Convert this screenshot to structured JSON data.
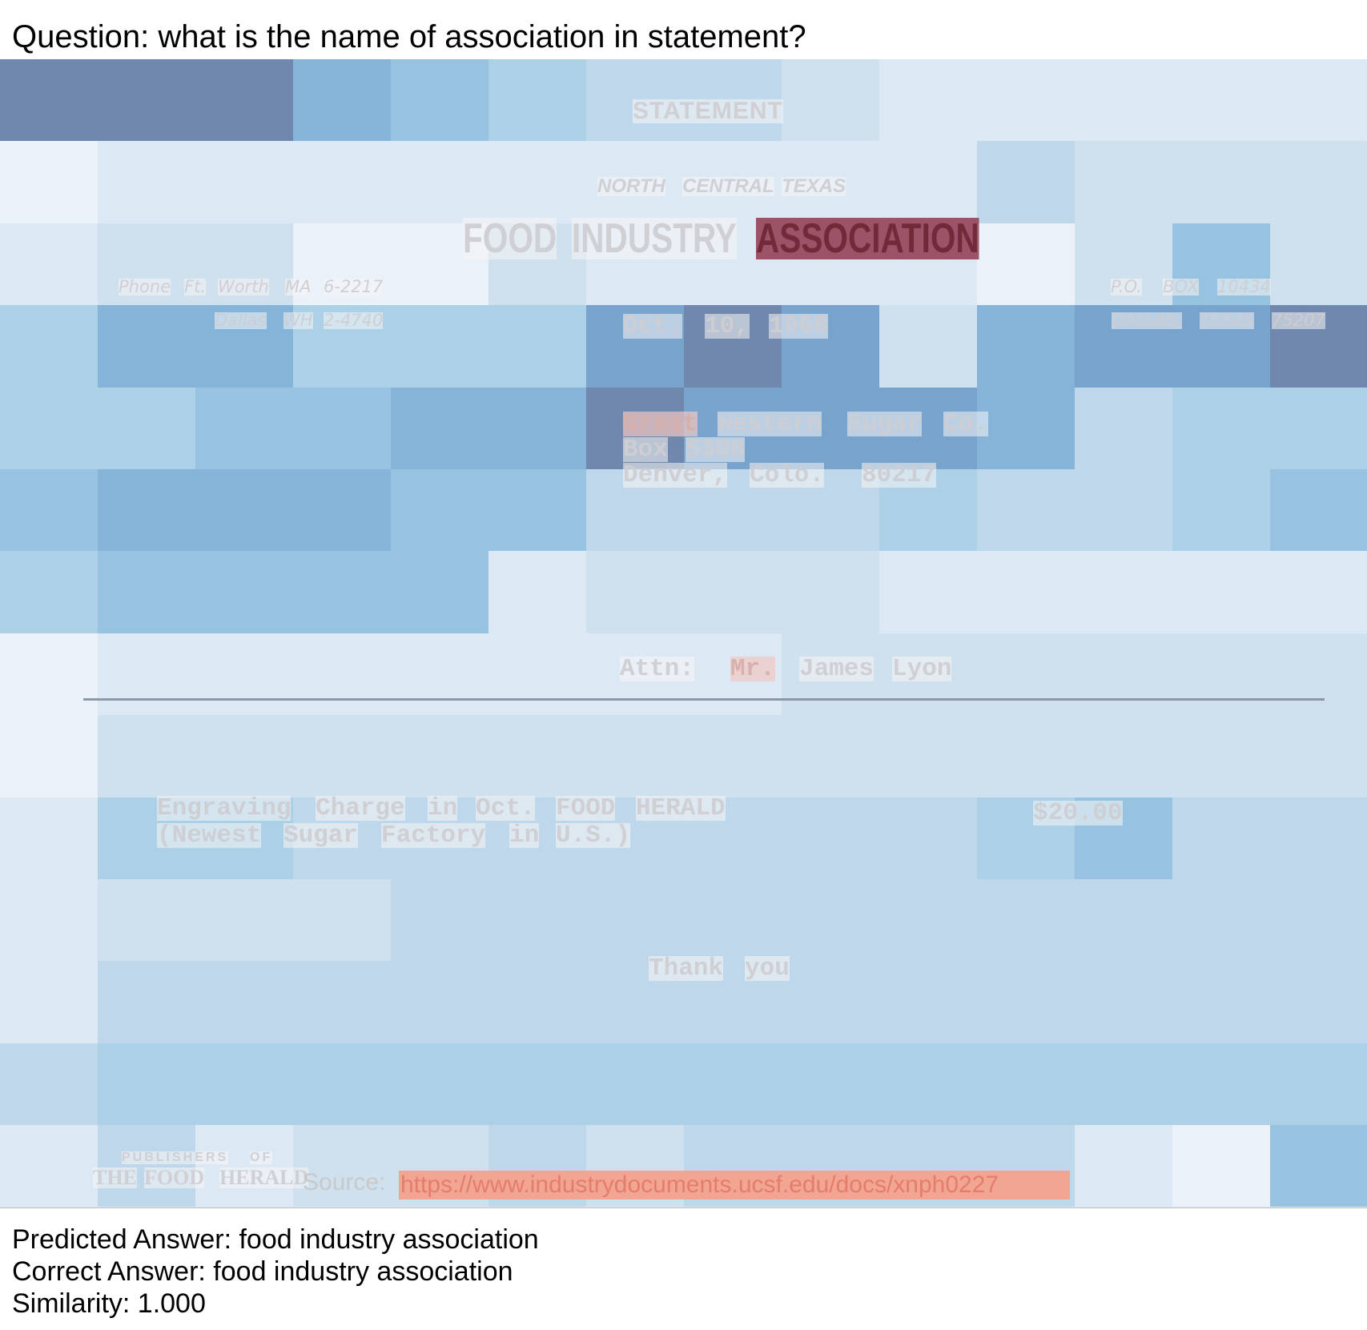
{
  "question": "Question: what is the name of association in statement?",
  "document": {
    "heading": "STATEMENT",
    "org_line1": [
      "NORTH",
      "CENTRAL",
      "TEXAS"
    ],
    "org_line2": [
      "FOOD",
      "INDUSTRY",
      "ASSOCIATION"
    ],
    "phone_line1": [
      "Phone",
      "Ft.",
      "Worth",
      "MA",
      "6-2217"
    ],
    "phone_line2": [
      "Dallas",
      "WH",
      "2-4740"
    ],
    "po_line1": [
      "P.O.",
      "BOX",
      "10434"
    ],
    "po_line2": [
      "DALLAS,",
      "TEXAS",
      "75207"
    ],
    "date": [
      "Oct.",
      "10,",
      "1968"
    ],
    "address_line1": [
      "Great",
      "Western",
      "Sugar",
      "Co."
    ],
    "address_line2": [
      "Box",
      "5308"
    ],
    "address_line3": [
      "Denver,",
      "Colo.",
      "80217"
    ],
    "attn": [
      "Attn:",
      "Mr.",
      "James",
      "Lyon"
    ],
    "item_line1": [
      "Engraving",
      "Charge",
      "in",
      "Oct.",
      "FOOD",
      "HERALD"
    ],
    "item_line2": [
      "(Newest",
      "Sugar",
      "Factory",
      "in",
      "U.S.)"
    ],
    "amount": "$20.00",
    "thanks": [
      "Thank",
      "you"
    ],
    "publisher_small": [
      "PUBLISHERS",
      "OF"
    ],
    "publisher_big": [
      "THE",
      "FOOD",
      "HERALD"
    ]
  },
  "source_label": "Source:",
  "source_url": "https://www.industrydocuments.ucsf.edu/docs/xnph0227",
  "predicted": "Predicted Answer: food industry association",
  "correct": "Correct Answer: food industry association",
  "similarity": "Similarity: 1.000",
  "colors": {
    "attention_high": "#8e3248",
    "attention_medium": "#f0c8c3",
    "source_highlight": "#f2a592",
    "heat_scale": [
      "#eaf1f8",
      "#dce8f3",
      "#cfe0ee",
      "#bfd7ea",
      "#acd0e6",
      "#97c3e0",
      "#86b4d8",
      "#78a3cc",
      "#7088ad"
    ]
  }
}
